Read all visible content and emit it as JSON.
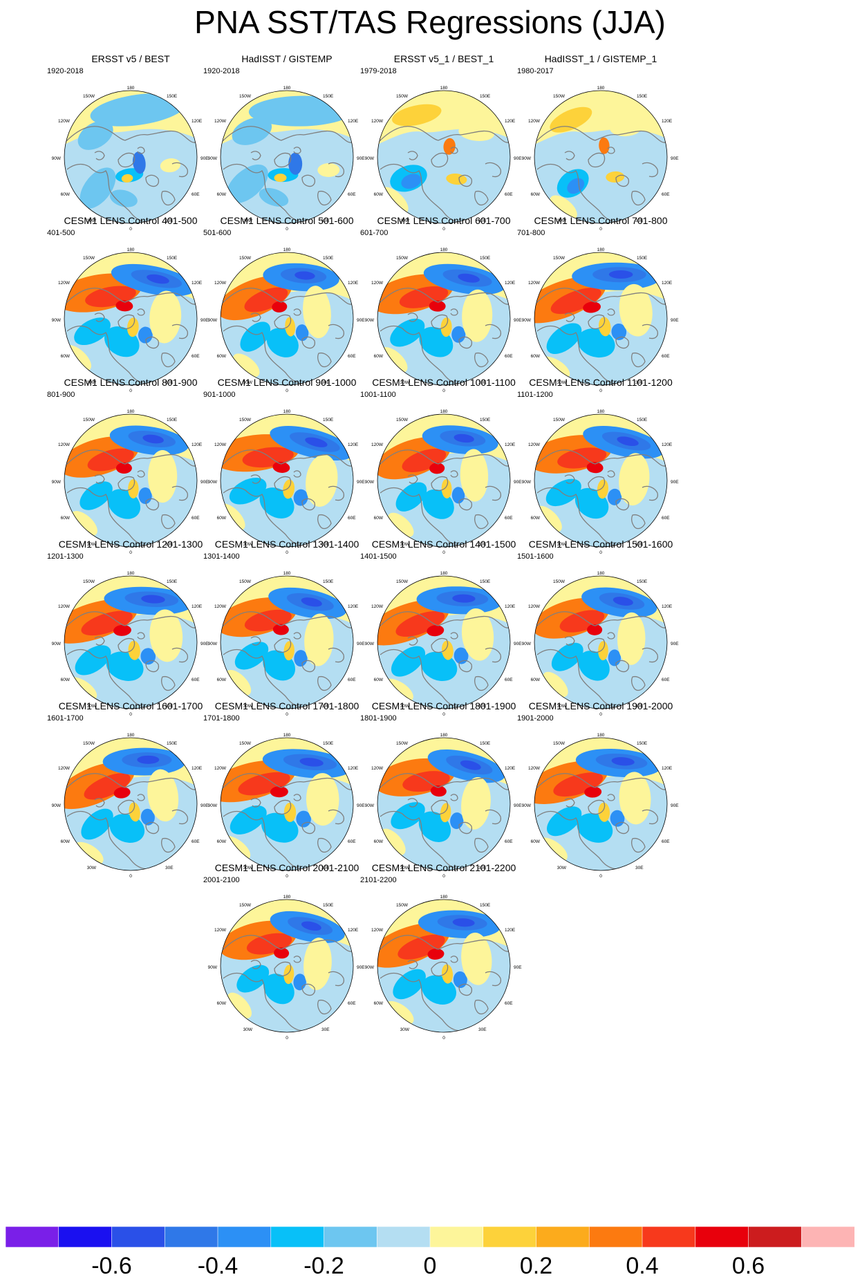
{
  "title": "PNA SST/TAS Regressions (JJA)",
  "panels": [
    {
      "title": "ERSST v5 / BEST",
      "period": "1920-2018",
      "pattern": "obs"
    },
    {
      "title": "HadISST / GISTEMP",
      "period": "1920-2018",
      "pattern": "obs"
    },
    {
      "title": "ERSST v5_1 / BEST_1",
      "period": "1979-2018",
      "pattern": "obs_recent"
    },
    {
      "title": "HadISST_1 / GISTEMP_1",
      "period": "1980-2017",
      "pattern": "obs_recent"
    },
    {
      "title": "CESM1 LENS Control 401-500",
      "period": "401-500",
      "pattern": "model"
    },
    {
      "title": "CESM1 LENS Control 501-600",
      "period": "501-600",
      "pattern": "model"
    },
    {
      "title": "CESM1 LENS Control 601-700",
      "period": "601-700",
      "pattern": "model"
    },
    {
      "title": "CESM1 LENS Control 701-800",
      "period": "701-800",
      "pattern": "model"
    },
    {
      "title": "CESM1 LENS Control 801-900",
      "period": "801-900",
      "pattern": "model"
    },
    {
      "title": "CESM1 LENS Control 901-1000",
      "period": "901-1000",
      "pattern": "model"
    },
    {
      "title": "CESM1 LENS Control 1001-1100",
      "period": "1001-1100",
      "pattern": "model"
    },
    {
      "title": "CESM1 LENS Control 1101-1200",
      "period": "1101-1200",
      "pattern": "model"
    },
    {
      "title": "CESM1 LENS Control 1201-1300",
      "period": "1201-1300",
      "pattern": "model"
    },
    {
      "title": "CESM1 LENS Control 1301-1400",
      "period": "1301-1400",
      "pattern": "model"
    },
    {
      "title": "CESM1 LENS Control 1401-1500",
      "period": "1401-1500",
      "pattern": "model"
    },
    {
      "title": "CESM1 LENS Control 1501-1600",
      "period": "1501-1600",
      "pattern": "model"
    },
    {
      "title": "CESM1 LENS Control 1601-1700",
      "period": "1601-1700",
      "pattern": "model"
    },
    {
      "title": "CESM1 LENS Control 1701-1800",
      "period": "1701-1800",
      "pattern": "model"
    },
    {
      "title": "CESM1 LENS Control 1801-1900",
      "period": "1801-1900",
      "pattern": "model"
    },
    {
      "title": "CESM1 LENS Control 1901-2000",
      "period": "1901-2000",
      "pattern": "model"
    },
    {
      "title": "CESM1 LENS Control 2001-2100",
      "period": "2001-2100",
      "pattern": "model"
    },
    {
      "title": "CESM1 LENS Control 2101-2200",
      "period": "2101-2200",
      "pattern": "model"
    }
  ],
  "map_longitude_labels": [
    "180",
    "150E",
    "120E",
    "90E",
    "60E",
    "30E",
    "0",
    "30W",
    "60W",
    "90W",
    "120W",
    "150W"
  ],
  "colorbar": {
    "colors": [
      "#7a1fe8",
      "#1a10f0",
      "#2a50e8",
      "#2f78e8",
      "#2c90f5",
      "#08c0f8",
      "#6dc6f0",
      "#b4def2",
      "#fdf59a",
      "#fdd23a",
      "#fcab1c",
      "#fc7a10",
      "#f7391c",
      "#e8000c",
      "#cc1c1e",
      "#fdb4b4"
    ],
    "labels": [
      "-0.6",
      "-0.4",
      "-0.2",
      "0",
      "0.2",
      "0.4",
      "0.6"
    ]
  }
}
